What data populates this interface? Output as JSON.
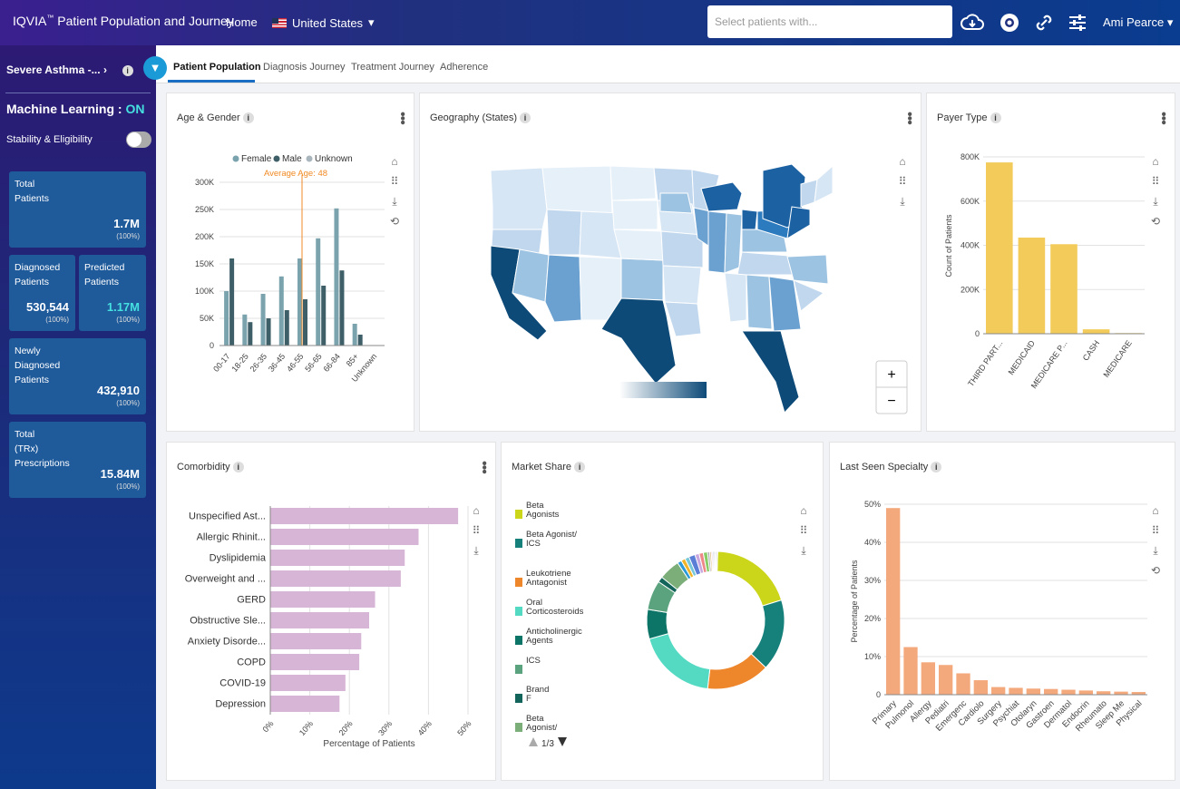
{
  "app": {
    "brand": "IQVIA",
    "brand_tm": "™",
    "title": "Patient Population and Journey",
    "home": "Home",
    "country": "United States",
    "search_placeholder": "Select patients with...",
    "user": "Ami Pearce"
  },
  "sidebar": {
    "cohort": "Severe Asthma -...",
    "ml_label": "Machine Learning :",
    "ml_state": "ON",
    "stability": "Stability & Eligibility",
    "cards": [
      {
        "label1": "Total",
        "label2": "Patients",
        "value": "1.7M",
        "pct": "(100%)"
      },
      {
        "label1": "Diagnosed",
        "label2": "Patients",
        "value": "530,544",
        "pct": "(100%)"
      },
      {
        "label1": "Predicted",
        "label2": "Patients",
        "value": "1.17M",
        "pct": "(100%)"
      },
      {
        "label1": "Newly",
        "label2": "Diagnosed",
        "label3": "Patients",
        "value": "432,910",
        "pct": "(100%)"
      },
      {
        "label1": "Total",
        "label2": "(TRx)",
        "label3": "Prescriptions",
        "value": "15.84M",
        "pct": "(100%)"
      }
    ]
  },
  "tabs": [
    "Patient Population",
    "Diagnosis Journey",
    "Treatment Journey",
    "Adherence"
  ],
  "panels": {
    "age": "Age & Gender",
    "geo": "Geography (States)",
    "payer": "Payer Type",
    "comorb": "Comorbidity",
    "market": "Market Share",
    "specialty": "Last Seen Specialty"
  },
  "colors": {
    "female": "#7aa3ad",
    "male": "#3e5f67",
    "unknown": "#aab6bd",
    "payer": "#f2cb5a",
    "comorb": "#d7b5d6",
    "specialty": "#f4a97c",
    "accent": "#1a9ad6",
    "avg": "#f08a24"
  },
  "chart_data": [
    {
      "type": "bar",
      "title": "Age & Gender",
      "categories": [
        "00-17",
        "18-25",
        "26-35",
        "36-45",
        "46-55",
        "56-65",
        "66-84",
        "85+",
        "Unknown"
      ],
      "series": [
        {
          "name": "Female",
          "values": [
            100000,
            57000,
            95000,
            127000,
            160000,
            197000,
            252000,
            40000,
            0
          ]
        },
        {
          "name": "Male",
          "values": [
            160000,
            43000,
            50000,
            65000,
            85000,
            110000,
            138000,
            20000,
            0
          ]
        },
        {
          "name": "Unknown",
          "values": [
            0,
            0,
            0,
            0,
            0,
            0,
            0,
            0,
            0
          ]
        }
      ],
      "annotation": "Average Age: 48",
      "annotation_category": "46-55",
      "yticks": [
        "0",
        "50K",
        "100K",
        "150K",
        "200K",
        "250K",
        "300K"
      ],
      "ylim": [
        0,
        300000
      ],
      "grid": true
    },
    {
      "type": "bar",
      "title": "Payer Type",
      "categories": [
        "THIRD PART...",
        "MEDICAID",
        "MEDICARE P...",
        "CASH",
        "MEDICARE"
      ],
      "values": [
        775000,
        435000,
        405000,
        20000,
        3000
      ],
      "ylabel": "Count of Patients",
      "yticks": [
        "0",
        "200K",
        "400K",
        "600K",
        "800K"
      ],
      "ylim": [
        0,
        800000
      ]
    },
    {
      "type": "bar",
      "title": "Comorbidity",
      "categories": [
        "Unspecified Ast...",
        "Allergic Rhinit...",
        "Dyslipidemia",
        "Overweight and ...",
        "GERD",
        "Obstructive Sle...",
        "Anxiety Disorde...",
        "COPD",
        "COVID-19",
        "Depression"
      ],
      "values": [
        47.5,
        37.5,
        34,
        33,
        26.5,
        25,
        23,
        22.5,
        19,
        17.5
      ],
      "xlabel": "Percentage of Patients",
      "xticks": [
        "0%",
        "10%",
        "20%",
        "30%",
        "40%",
        "50%"
      ],
      "xlim": [
        0,
        50
      ]
    },
    {
      "type": "pie",
      "title": "Market Share",
      "legend": [
        "Beta Agonists",
        "Beta Agonist/ ICS",
        "Leukotriene Antagonist",
        "Oral Corticosteroids",
        "Anticholinergic Agents",
        "ICS",
        "Brand F",
        "Beta Agonist/"
      ],
      "slice_colors": [
        "#cbd51a",
        "#16807b",
        "#ee862c",
        "#54d9c3",
        "#0d7568",
        "#5aa37e",
        "#13655b",
        "#7cae7a"
      ],
      "values": [
        20,
        17,
        15,
        19,
        7,
        7,
        1.3,
        5,
        1,
        1,
        1,
        1.5,
        1,
        1,
        1,
        0.5,
        0.4,
        0.3,
        0.3,
        0.3,
        0.3,
        0.3
      ],
      "pager": "1/3"
    },
    {
      "type": "bar",
      "title": "Last Seen Specialty",
      "categories": [
        "Primary",
        "Pulmonol",
        "Allergy",
        "Pediatri",
        "Emergenc",
        "Cardiolo",
        "Surgery",
        "Psychiat",
        "Otolaryn",
        "Gastroen",
        "Dermatol",
        "Endocrin",
        "Rheumato",
        "Sleep Me",
        "Physical"
      ],
      "values": [
        49,
        12.5,
        8.5,
        7.8,
        5.6,
        3.8,
        2,
        1.8,
        1.6,
        1.5,
        1.3,
        1.1,
        0.9,
        0.8,
        0.7
      ],
      "ylabel": "Percentage of Patients",
      "yticks": [
        "0",
        "10%",
        "20%",
        "30%",
        "40%",
        "50%"
      ],
      "ylim": [
        0,
        50
      ]
    }
  ]
}
